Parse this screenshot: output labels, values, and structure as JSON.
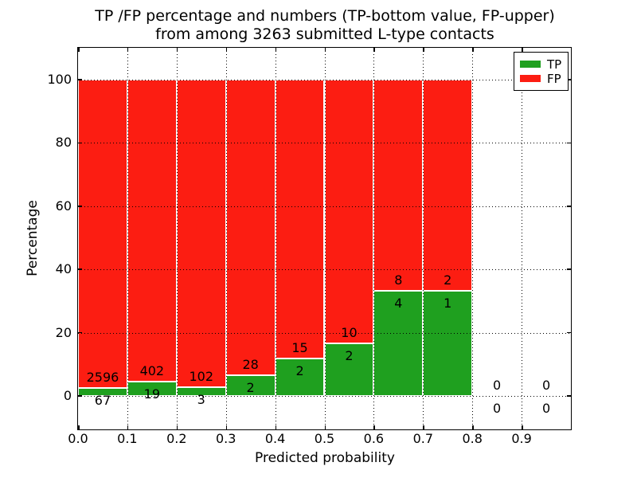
{
  "header": {
    "title_line1": "TP /FP percentage and numbers (TP-bottom value, FP-upper)",
    "title_line2": "from among 3263 submitted L-type contacts"
  },
  "axes": {
    "xlabel": "Predicted probability",
    "ylabel": "Percentage"
  },
  "colors": {
    "tp_green": "#1fa01f",
    "fp_red": "#fc1d12",
    "bar_edge": "#ffffff",
    "grid": "#000000"
  },
  "legend": {
    "position": "upper right",
    "entries": [
      {
        "label": "TP",
        "color": "#1fa01f"
      },
      {
        "label": "FP",
        "color": "#fc1d12"
      }
    ]
  },
  "chart_data": {
    "type": "bar",
    "stacked": true,
    "title": "TP /FP percentage and numbers (TP-bottom value, FP-upper) from among 3263 submitted L-type contacts",
    "xlabel": "Predicted probability",
    "ylabel": "Percentage",
    "total_contacts": 3263,
    "bin_width": 0.1,
    "bins": [
      {
        "range": [
          0.0,
          0.1
        ],
        "tp": 67,
        "fp": 2596
      },
      {
        "range": [
          0.1,
          0.2
        ],
        "tp": 19,
        "fp": 402
      },
      {
        "range": [
          0.2,
          0.3
        ],
        "tp": 3,
        "fp": 102
      },
      {
        "range": [
          0.3,
          0.4
        ],
        "tp": 2,
        "fp": 28
      },
      {
        "range": [
          0.4,
          0.5
        ],
        "tp": 2,
        "fp": 15
      },
      {
        "range": [
          0.5,
          0.6
        ],
        "tp": 2,
        "fp": 10
      },
      {
        "range": [
          0.6,
          0.7
        ],
        "tp": 4,
        "fp": 8
      },
      {
        "range": [
          0.7,
          0.8
        ],
        "tp": 1,
        "fp": 2
      },
      {
        "range": [
          0.8,
          0.9
        ],
        "tp": 0,
        "fp": 0
      },
      {
        "range": [
          0.9,
          1.0
        ],
        "tp": 0,
        "fp": 0
      }
    ],
    "note": "Each non-empty bin is drawn as a full-height (100%) stacked bar: green TP share at bottom = tp/(tp+fp)*100, red FP share above.",
    "x_ticks": [
      "0.0",
      "0.1",
      "0.2",
      "0.3",
      "0.4",
      "0.5",
      "0.6",
      "0.7",
      "0.8",
      "0.9"
    ],
    "y_ticks": [
      "0",
      "20",
      "40",
      "60",
      "80",
      "100"
    ],
    "xlim": [
      0.0,
      1.0
    ],
    "ylim": [
      -10.6,
      110
    ],
    "grid": "dotted",
    "legend_entries": [
      "TP",
      "FP"
    ]
  }
}
